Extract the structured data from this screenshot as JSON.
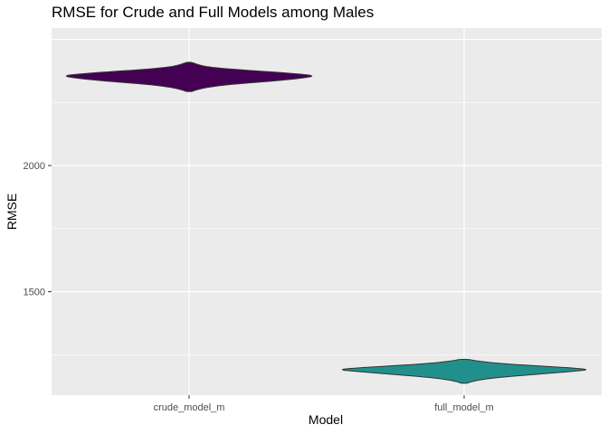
{
  "chart_data": {
    "type": "violin",
    "title": "RMSE for Crude and Full Models among Males",
    "xlabel": "Model",
    "ylabel": "RMSE",
    "categories": [
      "crude_model_m",
      "full_model_m"
    ],
    "y_ticks": [
      1500,
      2000
    ],
    "ylim": [
      1090,
      2545
    ],
    "grid": true,
    "legend": "none",
    "series": [
      {
        "category": "crude_model_m",
        "color": "#440154",
        "profile": [
          {
            "y": 2293,
            "w": 0.02
          },
          {
            "y": 2300,
            "w": 0.06
          },
          {
            "y": 2310,
            "w": 0.14
          },
          {
            "y": 2320,
            "w": 0.3
          },
          {
            "y": 2330,
            "w": 0.55
          },
          {
            "y": 2340,
            "w": 0.8
          },
          {
            "y": 2350,
            "w": 0.97
          },
          {
            "y": 2355,
            "w": 1.0
          },
          {
            "y": 2360,
            "w": 0.96
          },
          {
            "y": 2370,
            "w": 0.7
          },
          {
            "y": 2380,
            "w": 0.38
          },
          {
            "y": 2390,
            "w": 0.16
          },
          {
            "y": 2400,
            "w": 0.07
          },
          {
            "y": 2410,
            "w": 0.02
          }
        ]
      },
      {
        "category": "full_model_m",
        "color": "#21908C",
        "profile": [
          {
            "y": 1137,
            "w": 0.02
          },
          {
            "y": 1145,
            "w": 0.07
          },
          {
            "y": 1155,
            "w": 0.18
          },
          {
            "y": 1165,
            "w": 0.38
          },
          {
            "y": 1175,
            "w": 0.65
          },
          {
            "y": 1185,
            "w": 0.9
          },
          {
            "y": 1190,
            "w": 1.0
          },
          {
            "y": 1195,
            "w": 0.95
          },
          {
            "y": 1205,
            "w": 0.62
          },
          {
            "y": 1215,
            "w": 0.3
          },
          {
            "y": 1225,
            "w": 0.1
          },
          {
            "y": 1232,
            "w": 0.04
          }
        ]
      }
    ]
  }
}
